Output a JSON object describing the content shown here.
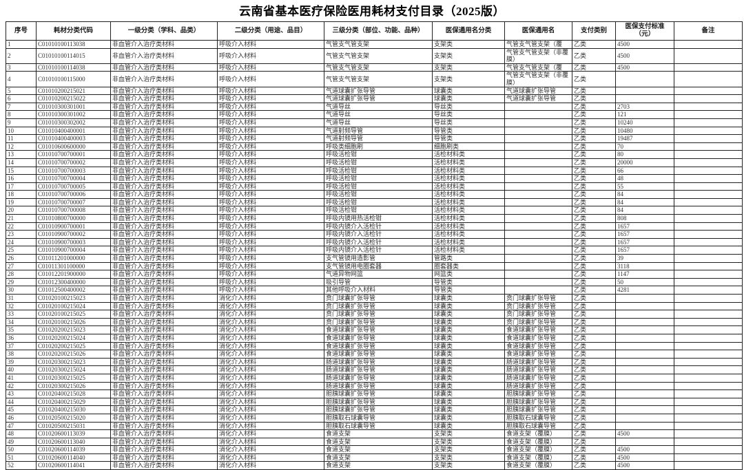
{
  "title": "云南省基本医疗保险医用耗材支付目录（2025版）",
  "colors": {
    "border": "#1f1f1f",
    "text": "#303030",
    "background": "#ffffff"
  },
  "table": {
    "columns": [
      "序号",
      "耗材分类代码",
      "一级分类（学科、品类）",
      "二级分类（用途、品目）",
      "三级分类（部位、功能、品种）",
      "医保通用名分类",
      "医保通用名",
      "支付类别",
      "医保支付标准（元）",
      "备注"
    ],
    "rows": [
      [
        "1",
        "C01010100113038",
        "非血管介入治疗类材料",
        "呼吸介入材料",
        "气管支气管支架",
        "支架类",
        "气管支气管支架（覆膜）",
        "乙类",
        "4500",
        ""
      ],
      [
        "2",
        "C01010100114015",
        "非血管介入治疗类材料",
        "呼吸介入材料",
        "气管支气管支架",
        "支架类",
        "气管支气管支架（非覆膜）",
        "乙类",
        "4500",
        ""
      ],
      [
        "3",
        "C01010100114038",
        "非血管介入治疗类材料",
        "呼吸介入材料",
        "气管支气管支架",
        "支架类",
        "气管支气管支架（覆膜）",
        "乙类",
        "4500",
        ""
      ],
      [
        "4",
        "C01010100115000",
        "非血管介入治疗类材料",
        "呼吸介入材料",
        "气管支气管支架",
        "支架类",
        "气管支气管支架（非覆膜）",
        "乙类",
        "",
        ""
      ],
      [
        "5",
        "C01010200215021",
        "非血管介入治疗类材料",
        "呼吸介入材料",
        "气道球囊扩张导管",
        "球囊类",
        "气道球囊扩张导管",
        "乙类",
        "",
        ""
      ],
      [
        "6",
        "C01010200215022",
        "非血管介入治疗类材料",
        "呼吸介入材料",
        "气道球囊扩张导管",
        "球囊类",
        "气道球囊扩张导管",
        "乙类",
        "",
        ""
      ],
      [
        "7",
        "C01010300301001",
        "非血管介入治疗类材料",
        "呼吸介入材料",
        "气道导丝",
        "导丝类",
        "",
        "乙类",
        "2703",
        ""
      ],
      [
        "8",
        "C01010300301002",
        "非血管介入治疗类材料",
        "呼吸介入材料",
        "气道导丝",
        "导丝类",
        "",
        "乙类",
        "121",
        ""
      ],
      [
        "9",
        "C01010300302002",
        "非血管介入治疗类材料",
        "呼吸介入材料",
        "气道导丝",
        "导丝类",
        "",
        "乙类",
        "10240",
        ""
      ],
      [
        "10",
        "C01010400400001",
        "非血管介入治疗类材料",
        "呼吸介入材料",
        "气道射频导管",
        "导管类",
        "",
        "乙类",
        "10480",
        ""
      ],
      [
        "11",
        "C01010400400003",
        "非血管介入治疗类材料",
        "呼吸介入材料",
        "气道射频导管",
        "导管类",
        "",
        "乙类",
        "19487",
        ""
      ],
      [
        "12",
        "C01010600600000",
        "非血管介入治疗类材料",
        "呼吸介入材料",
        "呼吸类细胞刷",
        "细胞刷类",
        "",
        "乙类",
        "70",
        ""
      ],
      [
        "13",
        "C01010700700001",
        "非血管介入治疗类材料",
        "呼吸介入材料",
        "呼吸活检钳",
        "活检材料类",
        "",
        "乙类",
        "80",
        ""
      ],
      [
        "14",
        "C01010700700002",
        "非血管介入治疗类材料",
        "呼吸介入材料",
        "呼吸活检钳",
        "活检材料类",
        "",
        "乙类",
        "20000",
        ""
      ],
      [
        "15",
        "C01010700700003",
        "非血管介入治疗类材料",
        "呼吸介入材料",
        "呼吸活检钳",
        "活检材料类",
        "",
        "乙类",
        "66",
        ""
      ],
      [
        "16",
        "C01010700700004",
        "非血管介入治疗类材料",
        "呼吸介入材料",
        "呼吸活检钳",
        "活检材料类",
        "",
        "乙类",
        "48",
        ""
      ],
      [
        "17",
        "C01010700700005",
        "非血管介入治疗类材料",
        "呼吸介入材料",
        "呼吸活检钳",
        "活检材料类",
        "",
        "乙类",
        "55",
        ""
      ],
      [
        "18",
        "C01010700700006",
        "非血管介入治疗类材料",
        "呼吸介入材料",
        "呼吸活检钳",
        "活检材料类",
        "",
        "乙类",
        "84",
        ""
      ],
      [
        "19",
        "C01010700700007",
        "非血管介入治疗类材料",
        "呼吸介入材料",
        "呼吸活检钳",
        "活检材料类",
        "",
        "乙类",
        "84",
        ""
      ],
      [
        "20",
        "C01010700700008",
        "非血管介入治疗类材料",
        "呼吸介入材料",
        "呼吸活检钳",
        "活检材料类",
        "",
        "乙类",
        "84",
        ""
      ],
      [
        "21",
        "C01010800700000",
        "非血管介入治疗类材料",
        "呼吸介入材料",
        "呼吸内镜用热活检钳",
        "活检材料类",
        "",
        "乙类",
        "808",
        ""
      ],
      [
        "22",
        "C01010900700001",
        "非血管介入治疗类材料",
        "呼吸介入材料",
        "呼吸内镜介入活检针",
        "活检材料类",
        "",
        "乙类",
        "1657",
        ""
      ],
      [
        "23",
        "C01010900700002",
        "非血管介入治疗类材料",
        "呼吸介入材料",
        "呼吸内镜介入活检针",
        "活检材料类",
        "",
        "乙类",
        "1657",
        ""
      ],
      [
        "24",
        "C01010900700003",
        "非血管介入治疗类材料",
        "呼吸介入材料",
        "呼吸内镜介入活检针",
        "活检材料类",
        "",
        "乙类",
        "1657",
        ""
      ],
      [
        "25",
        "C01010900700004",
        "非血管介入治疗类材料",
        "呼吸介入材料",
        "呼吸内镜介入活检针",
        "活检材料类",
        "",
        "乙类",
        "1657",
        ""
      ],
      [
        "26",
        "C01011201000000",
        "非血管介入治疗类材料",
        "呼吸介入材料",
        "支气管镜用造影管",
        "管路类",
        "",
        "乙类",
        "39",
        ""
      ],
      [
        "27",
        "C01011301100000",
        "非血管介入治疗类材料",
        "呼吸介入材料",
        "支气管镜用电圈套器",
        "圈套器类",
        "",
        "乙类",
        "3118",
        ""
      ],
      [
        "28",
        "C01012201900000",
        "非血管介入治疗类材料",
        "呼吸介入材料",
        "气道异物网篮",
        "网篮类",
        "",
        "乙类",
        "1147",
        ""
      ],
      [
        "29",
        "C01012300400000",
        "非血管介入治疗类材料",
        "呼吸介入材料",
        "吸引导管",
        "导管类",
        "",
        "乙类",
        "50",
        ""
      ],
      [
        "30",
        "C01012500400002",
        "非血管介入治疗类材料",
        "呼吸介入材料",
        "其他呼吸介入材料",
        "导管类",
        "",
        "乙类",
        "4281",
        ""
      ],
      [
        "31",
        "C01020100215023",
        "非血管介入治疗类材料",
        "消化介入材料",
        "贲门球囊扩张导管",
        "球囊类",
        "贲门球囊扩张导管",
        "乙类",
        "",
        ""
      ],
      [
        "32",
        "C01020100215024",
        "非血管介入治疗类材料",
        "消化介入材料",
        "贲门球囊扩张导管",
        "球囊类",
        "贲门球囊扩张导管",
        "乙类",
        "",
        ""
      ],
      [
        "33",
        "C01020100215025",
        "非血管介入治疗类材料",
        "消化介入材料",
        "贲门球囊扩张导管",
        "球囊类",
        "贲门球囊扩张导管",
        "乙类",
        "",
        ""
      ],
      [
        "34",
        "C01020100215026",
        "非血管介入治疗类材料",
        "消化介入材料",
        "贲门球囊扩张导管",
        "球囊类",
        "贲门球囊扩张导管",
        "乙类",
        "",
        ""
      ],
      [
        "35",
        "C01020200215023",
        "非血管介入治疗类材料",
        "消化介入材料",
        "食道球囊扩张导管",
        "球囊类",
        "食道球囊扩张导管",
        "乙类",
        "",
        ""
      ],
      [
        "36",
        "C01020200215024",
        "非血管介入治疗类材料",
        "消化介入材料",
        "食道球囊扩张导管",
        "球囊类",
        "食道球囊扩张导管",
        "乙类",
        "",
        ""
      ],
      [
        "37",
        "C01020200215025",
        "非血管介入治疗类材料",
        "消化介入材料",
        "食道球囊扩张导管",
        "球囊类",
        "食道球囊扩张导管",
        "乙类",
        "",
        ""
      ],
      [
        "38",
        "C01020200215026",
        "非血管介入治疗类材料",
        "消化介入材料",
        "食道球囊扩张导管",
        "球囊类",
        "食道球囊扩张导管",
        "乙类",
        "",
        ""
      ],
      [
        "39",
        "C01020300215023",
        "非血管介入治疗类材料",
        "消化介入材料",
        "肠道球囊扩张导管",
        "球囊类",
        "肠道球囊扩张导管",
        "乙类",
        "",
        ""
      ],
      [
        "40",
        "C01020300215024",
        "非血管介入治疗类材料",
        "消化介入材料",
        "肠道球囊扩张导管",
        "球囊类",
        "肠道球囊扩张导管",
        "乙类",
        "",
        ""
      ],
      [
        "41",
        "C01020300215025",
        "非血管介入治疗类材料",
        "消化介入材料",
        "肠道球囊扩张导管",
        "球囊类",
        "肠道球囊扩张导管",
        "乙类",
        "",
        ""
      ],
      [
        "42",
        "C01020300215026",
        "非血管介入治疗类材料",
        "消化介入材料",
        "肠道球囊扩张导管",
        "球囊类",
        "肠道球囊扩张导管",
        "乙类",
        "",
        ""
      ],
      [
        "43",
        "C01020400215028",
        "非血管介入治疗类材料",
        "消化介入材料",
        "胆胰球囊扩张导管",
        "球囊类",
        "胆胰球囊扩张导管",
        "乙类",
        "",
        ""
      ],
      [
        "44",
        "C01020400215029",
        "非血管介入治疗类材料",
        "消化介入材料",
        "胆胰球囊扩张导管",
        "球囊类",
        "胆胰球囊扩张导管",
        "乙类",
        "",
        ""
      ],
      [
        "45",
        "C01020400215030",
        "非血管介入治疗类材料",
        "消化介入材料",
        "胆胰球囊扩张导管",
        "球囊类",
        "胆胰球囊扩张导管",
        "乙类",
        "",
        ""
      ],
      [
        "46",
        "C01020500215020",
        "非血管介入治疗类材料",
        "消化介入材料",
        "胆胰取石球囊导管",
        "球囊类",
        "胆胰取石球囊导管",
        "乙类",
        "",
        ""
      ],
      [
        "47",
        "C01020500215031",
        "非血管介入治疗类材料",
        "消化介入材料",
        "胆胰取石球囊导管",
        "球囊类",
        "胆胰取石球囊导管",
        "乙类",
        "",
        ""
      ],
      [
        "48",
        "C01020600113039",
        "非血管介入治疗类材料",
        "消化介入材料",
        "食道支架",
        "支架类",
        "食道支架（覆膜）",
        "乙类",
        "4500",
        ""
      ],
      [
        "49",
        "C01020600113040",
        "非血管介入治疗类材料",
        "消化介入材料",
        "食道支架",
        "支架类",
        "食道支架（覆膜）",
        "乙类",
        "",
        ""
      ],
      [
        "50",
        "C01020600114039",
        "非血管介入治疗类材料",
        "消化介入材料",
        "食道支架",
        "支架类",
        "食道支架（覆膜）",
        "乙类",
        "4500",
        ""
      ],
      [
        "51",
        "C01020600114040",
        "非血管介入治疗类材料",
        "消化介入材料",
        "食道支架",
        "支架类",
        "食道支架（覆膜）",
        "乙类",
        "4500",
        ""
      ],
      [
        "52",
        "C01020600114041",
        "非血管介入治疗类材料",
        "消化介入材料",
        "食道支架",
        "支架类",
        "食道支架（覆膜）",
        "乙类",
        "4500",
        ""
      ]
    ]
  }
}
